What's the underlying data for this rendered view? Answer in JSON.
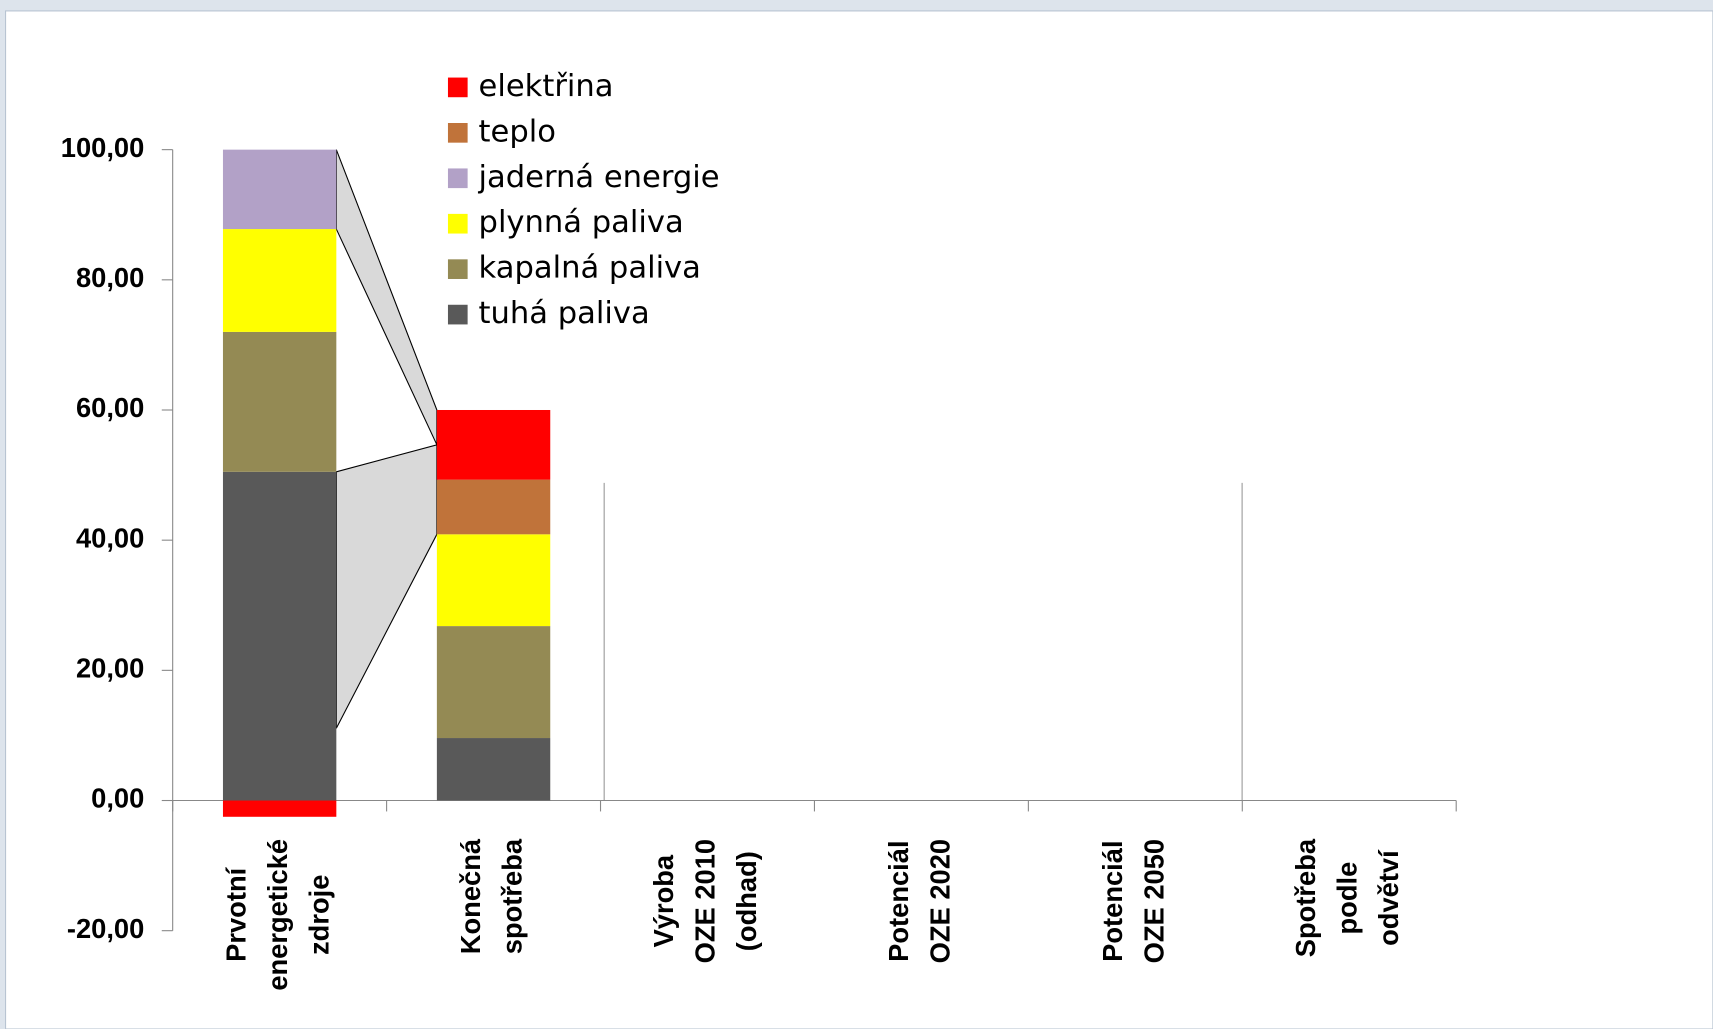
{
  "chart_data": {
    "type": "stacked_bar",
    "categories": [
      [
        "Prvotní",
        "energetické",
        "zdroje"
      ],
      [
        "Konečná",
        "spotřeba"
      ],
      [
        "Výroba",
        "OZE 2010",
        "(odhad)"
      ],
      [
        "Potenciál",
        "OZE 2020"
      ],
      [
        "Potenciál",
        "OZE 2050"
      ],
      [
        "Spotřeba",
        "podle",
        "odvětví"
      ]
    ],
    "series": [
      {
        "name": "tuhá paliva",
        "color": "#595959",
        "values": [
          50.5,
          9.6,
          null,
          null,
          null,
          null
        ]
      },
      {
        "name": "kapalná paliva",
        "color": "#948a54",
        "values": [
          21.5,
          17.2,
          null,
          null,
          null,
          null
        ]
      },
      {
        "name": "plynná paliva",
        "color": "#ffff00",
        "values": [
          15.8,
          14.1,
          null,
          null,
          null,
          null
        ]
      },
      {
        "name": "jaderná energie",
        "color": "#b2a1c7",
        "values": [
          12.2,
          0,
          null,
          null,
          null,
          null
        ]
      },
      {
        "name": "teplo",
        "color": "#c0733a",
        "values": [
          0,
          8.4,
          null,
          null,
          null,
          null
        ]
      },
      {
        "name": "elektřina",
        "color": "#ff0000",
        "values": [
          -2.5,
          10.7,
          null,
          null,
          null,
          null
        ]
      }
    ],
    "ylim": [
      -20,
      100
    ],
    "yticks": [
      {
        "value": -20,
        "label": "-20,00"
      },
      {
        "value": 0,
        "label": "0,00"
      },
      {
        "value": 20,
        "label": "20,00"
      },
      {
        "value": 40,
        "label": "40,00"
      },
      {
        "value": 60,
        "label": "60,00"
      },
      {
        "value": 80,
        "label": "80,00"
      },
      {
        "value": 100,
        "label": "100,00"
      }
    ],
    "legend": "top"
  }
}
